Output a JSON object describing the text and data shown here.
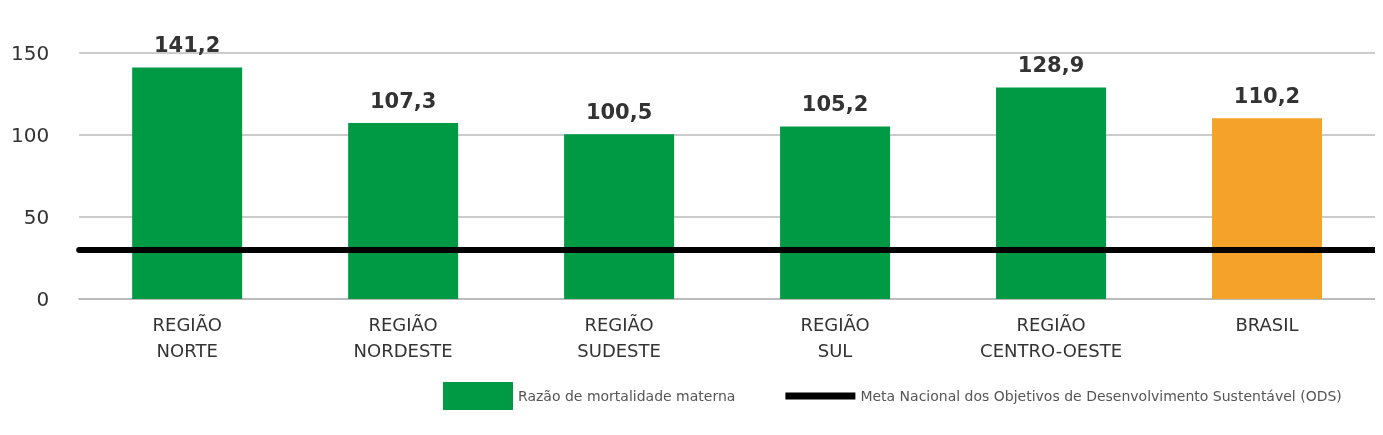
{
  "chart_data": {
    "type": "bar",
    "categories": [
      "REGIÃO NORTE",
      "REGIÃO NORDESTE",
      "REGIÃO SUDESTE",
      "REGIÃO SUL",
      "REGIÃO CENTRO-OESTE",
      "BRASIL"
    ],
    "series": [
      {
        "name": "Razão de mortalidade materna",
        "color": "#009a44",
        "colors": [
          "#009a44",
          "#009a44",
          "#009a44",
          "#009a44",
          "#009a44",
          "#f4a22a"
        ],
        "values": [
          141.2,
          107.3,
          100.5,
          105.2,
          128.9,
          110.2
        ],
        "value_labels": [
          "141,2",
          "107,3",
          "100,5",
          "105,2",
          "128,9",
          "110,2"
        ]
      }
    ],
    "ylim": [
      0,
      150
    ],
    "yticks": [
      0,
      50,
      100,
      150
    ],
    "grid": "y",
    "legend": "bottom",
    "ref_lines": [
      {
        "axis": "y",
        "value": 30,
        "label": "Meta Nacional dos Objetivos de Desenvolvimento Sustentável (ODS)",
        "color": "#000000",
        "line_style": "solid"
      }
    ]
  }
}
